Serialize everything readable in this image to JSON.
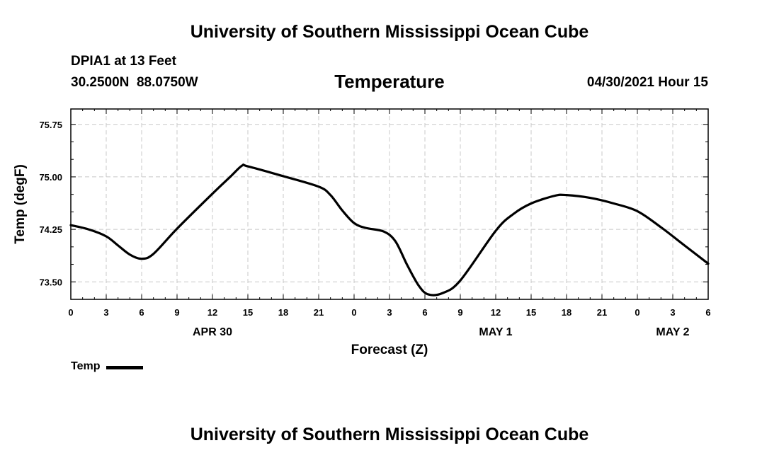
{
  "header": {
    "title": "University of Southern Mississippi Ocean Cube",
    "station_name": "DPIA1 at 13 Feet",
    "station_coords": "30.2500N  88.0750W",
    "chart_title": "Temperature",
    "timestamp": "04/30/2021 Hour 15"
  },
  "footer": {
    "title": "University of Southern Mississippi Ocean Cube"
  },
  "legend": {
    "label": "Temp",
    "color": "#000000"
  },
  "chart_data": {
    "type": "line",
    "title": "Temperature",
    "xlabel": "Forecast (Z)",
    "ylabel": "Temp (degF)",
    "xlim": [
      0,
      54
    ],
    "ylim": [
      73.25,
      75.97
    ],
    "grid": true,
    "legend_position": "bottom-left",
    "x_ticks": [
      0,
      3,
      6,
      9,
      12,
      15,
      18,
      21,
      24,
      27,
      30,
      33,
      36,
      39,
      42,
      45,
      48,
      51,
      54
    ],
    "x_tick_labels": [
      "0",
      "3",
      "6",
      "9",
      "12",
      "15",
      "18",
      "21",
      "0",
      "3",
      "6",
      "9",
      "12",
      "15",
      "18",
      "21",
      "0",
      "3",
      "6"
    ],
    "y_ticks": [
      73.5,
      74.25,
      75.0,
      75.75
    ],
    "y_tick_labels": [
      "73.50",
      "74.25",
      "75.00",
      "75.75"
    ],
    "day_labels": [
      {
        "x": 12,
        "label": "APR 30"
      },
      {
        "x": 36,
        "label": "MAY 1"
      },
      {
        "x": 51,
        "label": "MAY 2"
      }
    ],
    "series": [
      {
        "name": "Temp",
        "color": "#000000",
        "points": [
          [
            0,
            74.31
          ],
          [
            1.5,
            74.25
          ],
          [
            3,
            74.15
          ],
          [
            4,
            74.02
          ],
          [
            5,
            73.89
          ],
          [
            6,
            73.83
          ],
          [
            7,
            73.9
          ],
          [
            9,
            74.26
          ],
          [
            12,
            74.76
          ],
          [
            13.5,
            75.0
          ],
          [
            14.5,
            75.16
          ],
          [
            15,
            75.15
          ],
          [
            18,
            75.01
          ],
          [
            21,
            74.86
          ],
          [
            22,
            74.74
          ],
          [
            23,
            74.52
          ],
          [
            24,
            74.34
          ],
          [
            25,
            74.27
          ],
          [
            26.5,
            74.22
          ],
          [
            27.5,
            74.08
          ],
          [
            28.5,
            73.74
          ],
          [
            29.5,
            73.44
          ],
          [
            30.3,
            73.32
          ],
          [
            31.5,
            73.34
          ],
          [
            33,
            73.52
          ],
          [
            36,
            74.23
          ],
          [
            37.5,
            74.47
          ],
          [
            39,
            74.62
          ],
          [
            41,
            74.73
          ],
          [
            42,
            74.74
          ],
          [
            44,
            74.7
          ],
          [
            46,
            74.62
          ],
          [
            48,
            74.51
          ],
          [
            50,
            74.28
          ],
          [
            52,
            74.02
          ],
          [
            54,
            73.76
          ]
        ]
      }
    ]
  }
}
